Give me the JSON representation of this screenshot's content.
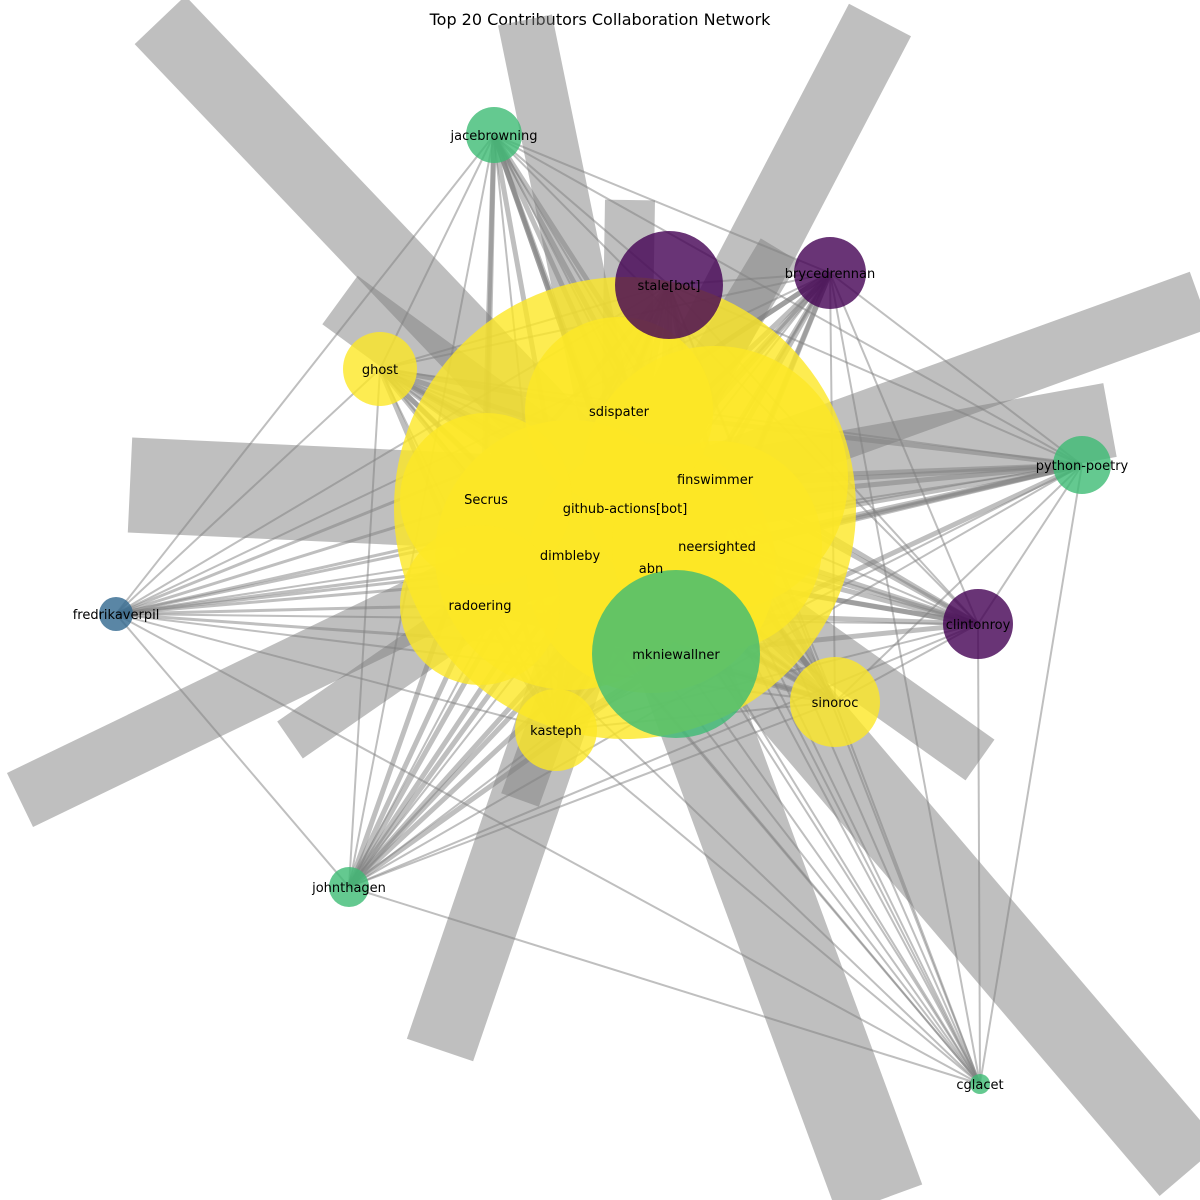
{
  "title": "Top 20 Contributors Collaboration Network",
  "chart_data": {
    "type": "network",
    "node_size_encoding": "contribution volume",
    "color_scale": "viridis",
    "nodes": [
      {
        "id": "github-actions[bot]",
        "color": "#fde725"
      },
      {
        "id": "sdispater",
        "color": "#fde725"
      },
      {
        "id": "finswimmer",
        "color": "#fde725"
      },
      {
        "id": "neersighted",
        "color": "#fde725"
      },
      {
        "id": "Secrus",
        "color": "#fde725"
      },
      {
        "id": "dimbleby",
        "color": "#fde725"
      },
      {
        "id": "abn",
        "color": "#fde725"
      },
      {
        "id": "radoering",
        "color": "#fde725"
      },
      {
        "id": "mkniewallner",
        "color": "#3dbc74"
      },
      {
        "id": "stale[bot]",
        "color": "#440154"
      },
      {
        "id": "brycedrennan",
        "color": "#440154"
      },
      {
        "id": "clintonroy",
        "color": "#440154"
      },
      {
        "id": "jacebrowning",
        "color": "#3dbc74"
      },
      {
        "id": "python-poetry",
        "color": "#3dbc74"
      },
      {
        "id": "johnthagen",
        "color": "#3dbc74"
      },
      {
        "id": "cglacet",
        "color": "#3dbc74"
      },
      {
        "id": "fredrikaverpil",
        "color": "#31688e"
      },
      {
        "id": "ghost",
        "color": "#fde725"
      },
      {
        "id": "sinoroc",
        "color": "#fde725"
      },
      {
        "id": "kasteph",
        "color": "#fde725"
      }
    ]
  }
}
